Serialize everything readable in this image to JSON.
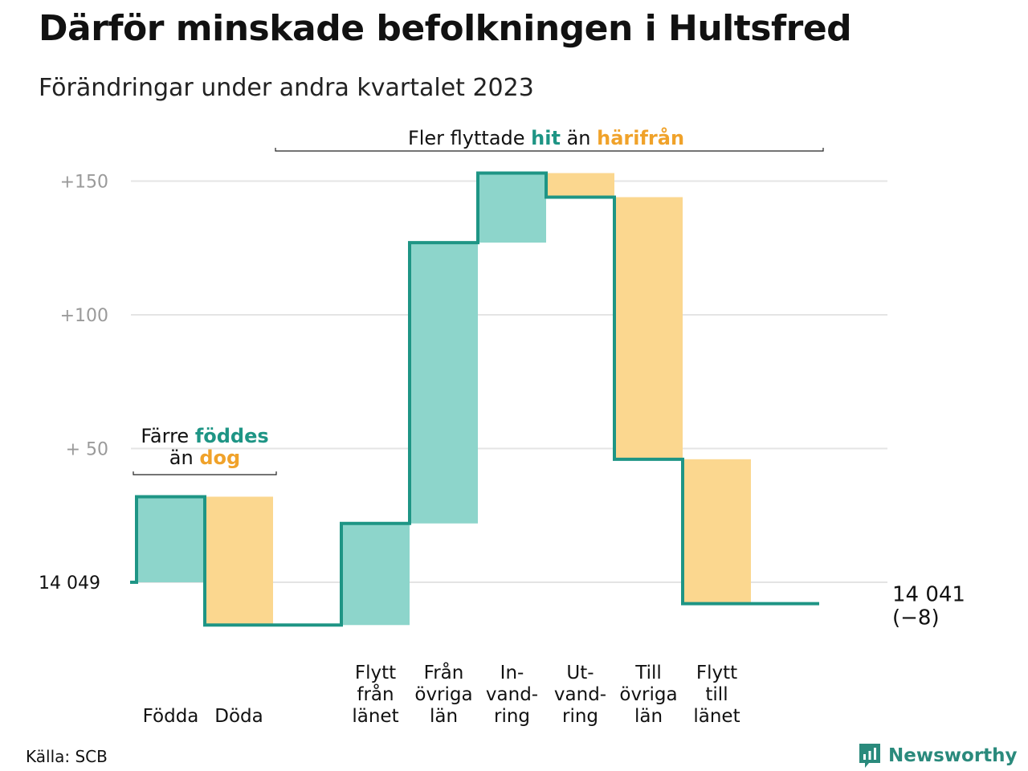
{
  "title": "Därför minskade befolkningen i Hultsfred",
  "subtitle": "Förändringar under andra kvartalet 2023",
  "source": "Källa: SCB",
  "brand": "Newsworthy",
  "colors": {
    "line": "#1e9585",
    "increase": "#8dd5cb",
    "decrease": "#fbd78f",
    "accent_teal": "#1e9585",
    "accent_orange": "#f0a22a",
    "grid": "#e4e4e4"
  },
  "chart_data": {
    "type": "waterfall",
    "start_value": 14049,
    "start_label": "14  049",
    "ylim": [
      -16,
      158
    ],
    "y_ticks": [
      {
        "value": 150,
        "label": "+150"
      },
      {
        "value": 100,
        "label": "+100"
      },
      {
        "value": 50,
        "label": "+  50"
      }
    ],
    "steps": [
      {
        "label": [
          "Födda"
        ],
        "change": 32,
        "kind": "increase"
      },
      {
        "label": [
          "Döda"
        ],
        "change": -48,
        "kind": "decrease"
      },
      {
        "label": [],
        "change": 0,
        "kind": "none"
      },
      {
        "label": [
          "Flytt",
          "från",
          "länet"
        ],
        "change": 38,
        "kind": "increase"
      },
      {
        "label": [
          "Från",
          "övriga",
          "län"
        ],
        "change": 105,
        "kind": "increase"
      },
      {
        "label": [
          "In-",
          "vand-",
          "ring"
        ],
        "change": 26,
        "kind": "increase"
      },
      {
        "label": [
          "Ut-",
          "vand-",
          "ring"
        ],
        "change": -9,
        "kind": "decrease"
      },
      {
        "label": [
          "Till",
          "övriga",
          "län"
        ],
        "change": -98,
        "kind": "decrease"
      },
      {
        "label": [
          "Flytt",
          "till",
          "länet"
        ],
        "change": -54,
        "kind": "decrease"
      },
      {
        "label": [],
        "change": 0,
        "kind": "none"
      }
    ],
    "end_value_label": "14 041",
    "end_change_label": "(−8)",
    "annotations": [
      {
        "id": "births",
        "line1": [
          {
            "text": "Färre ",
            "style": "plain"
          },
          {
            "text": "föddes",
            "style": "teal"
          }
        ],
        "line2": [
          {
            "text": "än ",
            "style": "plain"
          },
          {
            "text": "dog",
            "style": "orange"
          }
        ],
        "span_steps": [
          0,
          1
        ]
      },
      {
        "id": "migration",
        "line1": [
          {
            "text": "Fler flyttade ",
            "style": "plain"
          },
          {
            "text": "hit",
            "style": "teal"
          },
          {
            "text": "  än ",
            "style": "plain"
          },
          {
            "text": "härifrån",
            "style": "orange"
          }
        ],
        "span_steps": [
          3,
          8
        ]
      }
    ]
  }
}
